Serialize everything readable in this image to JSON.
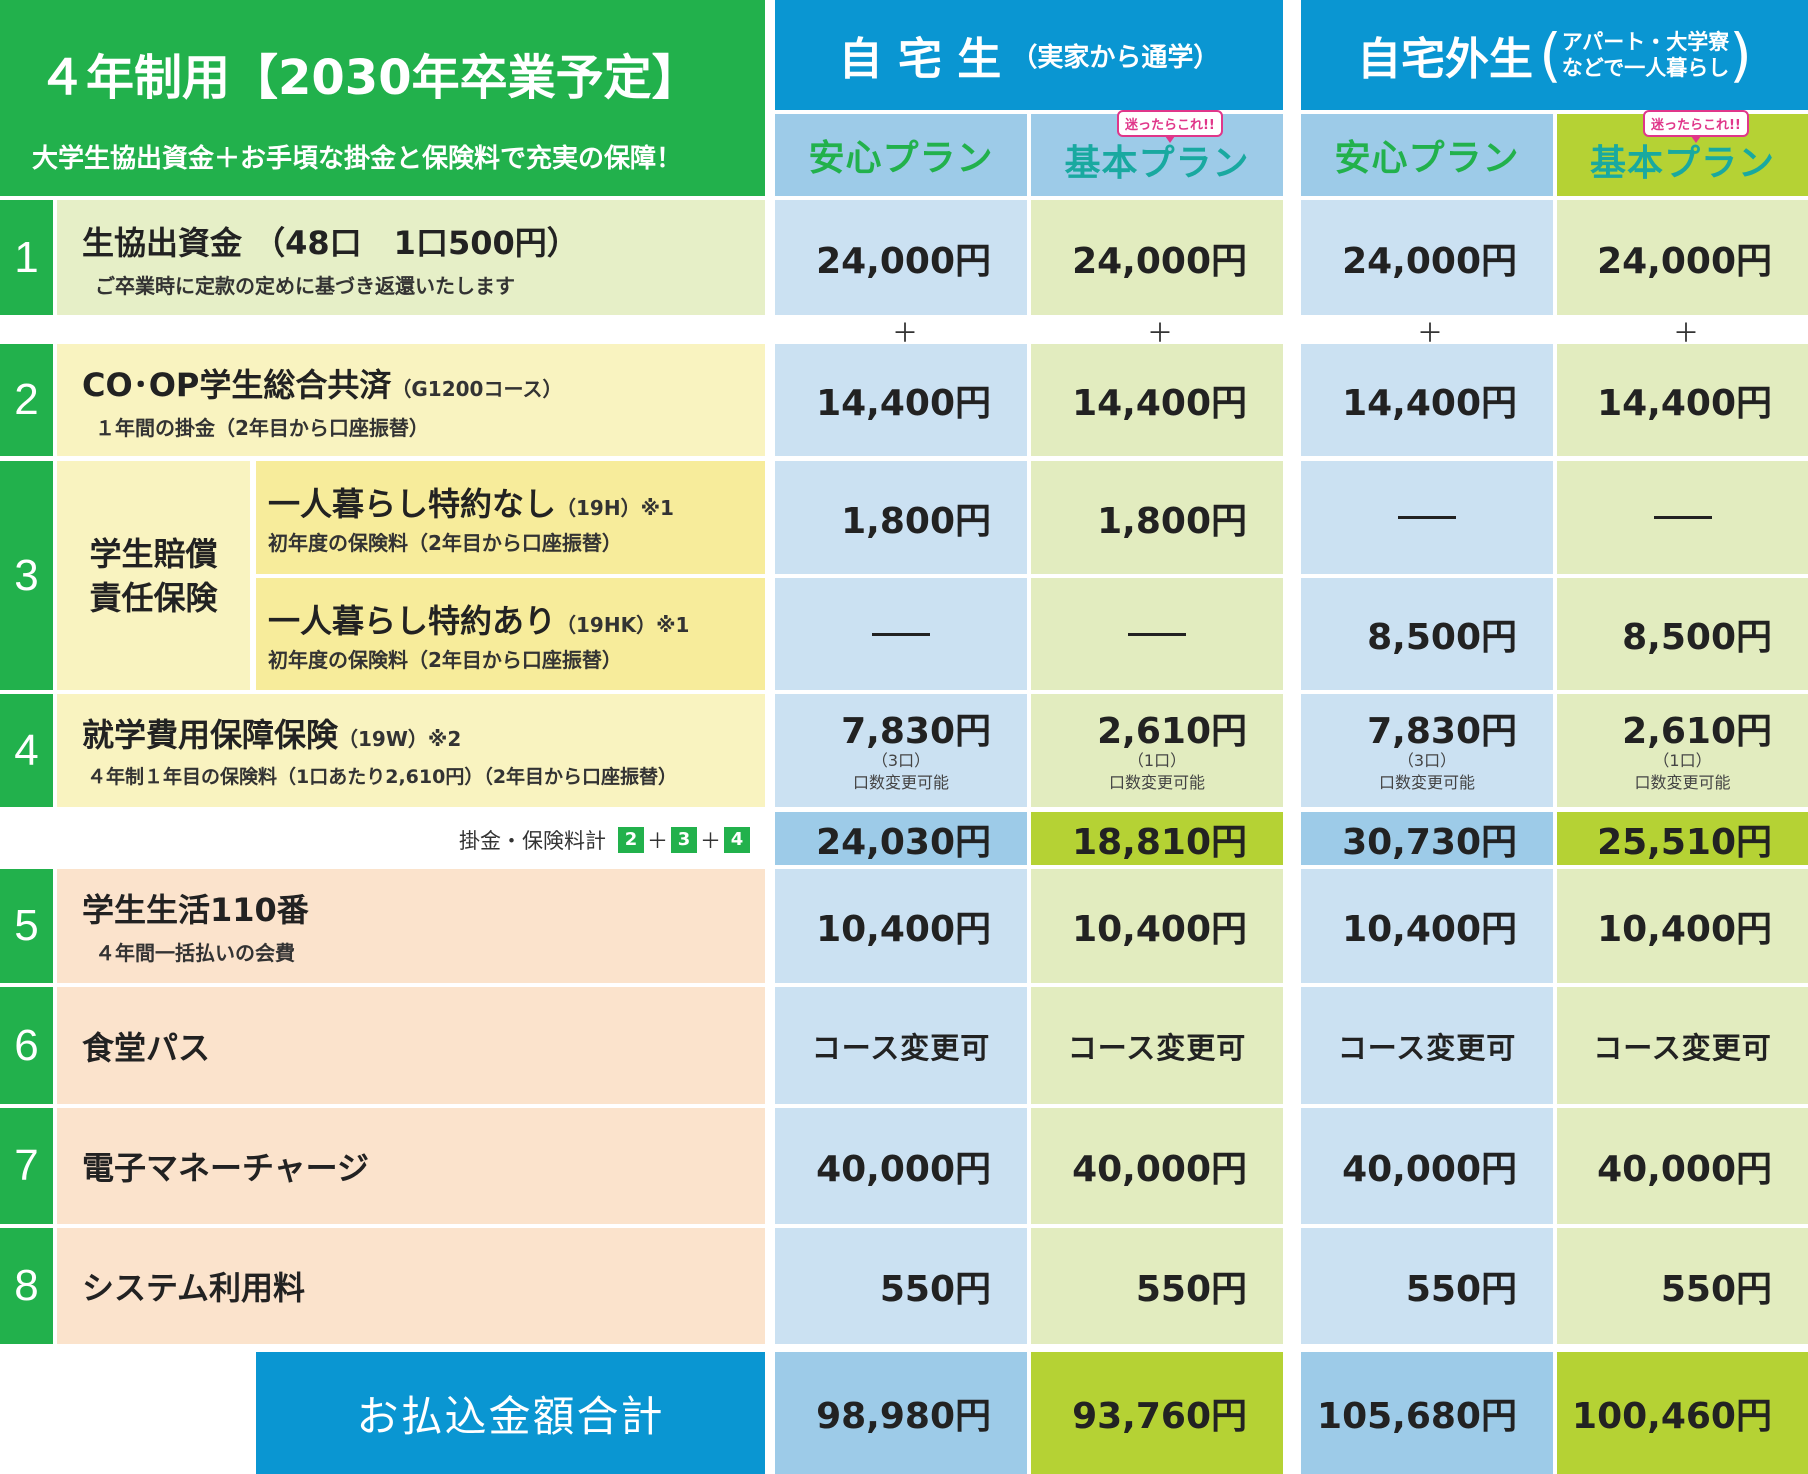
{
  "header": {
    "title": "４年制用【2030年卒業予定】",
    "subtitle": "大学生協出資金＋お手頃な掛金と保険料で充実の保障！",
    "home": {
      "main": "自 宅 生",
      "sub": "（実家から通学）"
    },
    "away": {
      "main": "自宅外生",
      "sub_line1": "アパート・大学寮",
      "sub_line2": "などで一人暮らし"
    },
    "plans": [
      "安心プラン",
      "基本プラン",
      "安心プラン",
      "基本プラン"
    ],
    "badge": "迷ったらこれ!!"
  },
  "rows": {
    "r1": {
      "num": "1",
      "title": "生協出資金 （48口　1口500円）",
      "sub": "ご卒業時に定款の定めに基づき返還いたします",
      "values": [
        "24,000円",
        "24,000円",
        "24,000円",
        "24,000円"
      ]
    },
    "plus": "＋",
    "r2": {
      "num": "2",
      "title": "CO･OP学生総合共済",
      "title_small": "（G1200コース）",
      "sub": "１年間の掛金（2年目から口座振替）",
      "values": [
        "14,400円",
        "14,400円",
        "14,400円",
        "14,400円"
      ]
    },
    "r3": {
      "num": "3",
      "group_line1": "学生賠償",
      "group_line2": "責任保険",
      "a": {
        "title": "一人暮らし特約なし",
        "title_small": "（19H）※1",
        "sub": "初年度の保険料（2年目から口座振替）",
        "values": [
          "1,800円",
          "1,800円",
          "—",
          "—"
        ]
      },
      "b": {
        "title": "一人暮らし特約あり",
        "title_small": "（19HK）※1",
        "sub": "初年度の保険料（2年目から口座振替）",
        "values": [
          "—",
          "—",
          "8,500円",
          "8,500円"
        ]
      }
    },
    "r4": {
      "num": "4",
      "title": "就学費用保障保険",
      "title_small": "（19W）※2",
      "sub": "４年制１年目の保険料（1口あたり2,610円）（2年目から口座振替）",
      "values": [
        "7,830円",
        "2,610円",
        "7,830円",
        "2,610円"
      ],
      "units": [
        "（3口）",
        "（1口）",
        "（3口）",
        "（1口）"
      ],
      "note": "口数変更可能"
    },
    "subtotal": {
      "label": "掛金・保険料計",
      "n2": "2",
      "n3": "3",
      "n4": "4",
      "plus": "＋",
      "values": [
        "24,030円",
        "18,810円",
        "30,730円",
        "25,510円"
      ]
    },
    "r5": {
      "num": "5",
      "title": "学生生活110番",
      "sub": "４年間一括払いの会費",
      "values": [
        "10,400円",
        "10,400円",
        "10,400円",
        "10,400円"
      ]
    },
    "r6": {
      "num": "6",
      "title": "食堂パス",
      "values": [
        "コース変更可",
        "コース変更可",
        "コース変更可",
        "コース変更可"
      ]
    },
    "r7": {
      "num": "7",
      "title": "電子マネーチャージ",
      "values": [
        "40,000円",
        "40,000円",
        "40,000円",
        "40,000円"
      ]
    },
    "r8": {
      "num": "8",
      "title": "システム利用料",
      "values": [
        "550円",
        "550円",
        "550円",
        "550円"
      ]
    },
    "total": {
      "label": "お払込金額合計",
      "values": [
        "98,980円",
        "93,760円",
        "105,680円",
        "100,460円"
      ]
    }
  },
  "colors": {
    "green": "#22b14c",
    "blue": "#0a96d2",
    "lime": "#b5d234",
    "pink": "#e0368a"
  }
}
